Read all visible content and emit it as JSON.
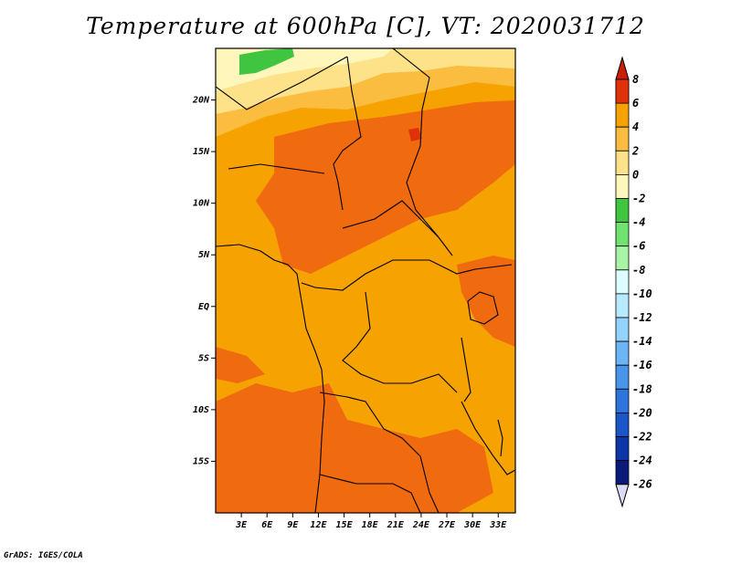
{
  "title": "Temperature at 600hPa [C], VT: 2020031712",
  "credit": "GrADS: IGES/COLA",
  "map": {
    "lon_range": [
      0,
      35
    ],
    "lat_range": [
      -20,
      25
    ],
    "x_ticks": [
      "3E",
      "6E",
      "9E",
      "12E",
      "15E",
      "18E",
      "21E",
      "24E",
      "27E",
      "30E",
      "33E"
    ],
    "y_ticks": [
      "20N",
      "15N",
      "10N",
      "5N",
      "EQ",
      "5S",
      "10S",
      "15S"
    ],
    "dominant_field_color": "#f6a200"
  },
  "colorbar": {
    "labels": [
      "8",
      "6",
      "4",
      "2",
      "0",
      "-2",
      "-4",
      "-6",
      "-8",
      "-10",
      "-12",
      "-14",
      "-16",
      "-18",
      "-20",
      "-22",
      "-24",
      "-26"
    ],
    "colors": [
      "#e0320a",
      "#f06a10",
      "#f6a200",
      "#fbbd3f",
      "#fde28a",
      "#fff6bc",
      "#3fc53f",
      "#6fe26f",
      "#a8f5a8",
      "#dcfcff",
      "#b8eaff",
      "#94d2ff",
      "#6cb4f4",
      "#4a94ea",
      "#2f73dc",
      "#1c55c8",
      "#0c35a8",
      "#0a1a7a"
    ],
    "top_triangle_color": "#c82000",
    "bottom_triangle_color": "#dcdcf8"
  }
}
